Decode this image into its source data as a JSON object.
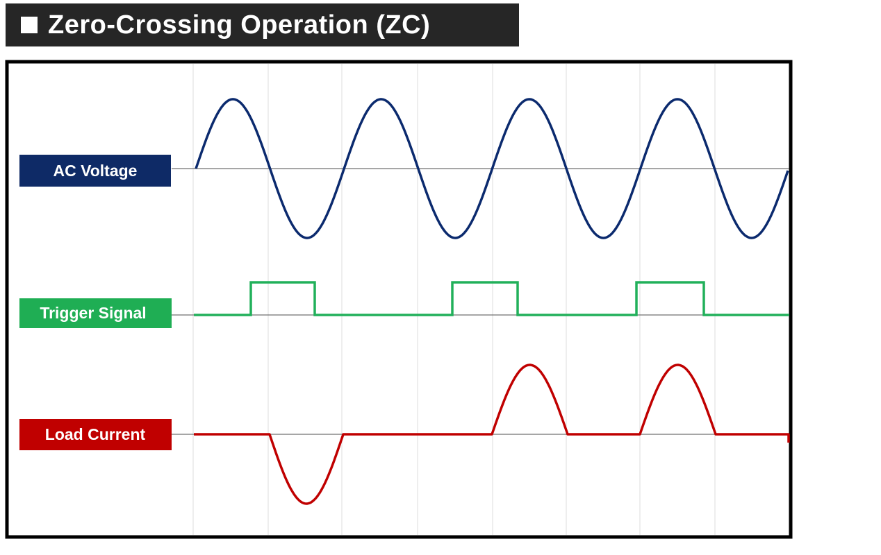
{
  "title": {
    "text": "Zero-Crossing Operation (ZC)",
    "icon": "square-bullet-icon"
  },
  "signals": [
    {
      "key": "ac_voltage",
      "label": "AC Voltage",
      "color": "#0b2a6e",
      "label_bg": "#0e2a66"
    },
    {
      "key": "trigger",
      "label": "Trigger Signal",
      "color": "#21b05a",
      "label_bg": "#1fae54"
    },
    {
      "key": "load_current",
      "label": "Load Current",
      "color": "#c00000",
      "label_bg": "#c00000"
    }
  ],
  "colors": {
    "title_bg": "#262626",
    "frame": "#000000",
    "gridline": "#d9d9d9",
    "baseline": "#4d4d4d"
  }
}
